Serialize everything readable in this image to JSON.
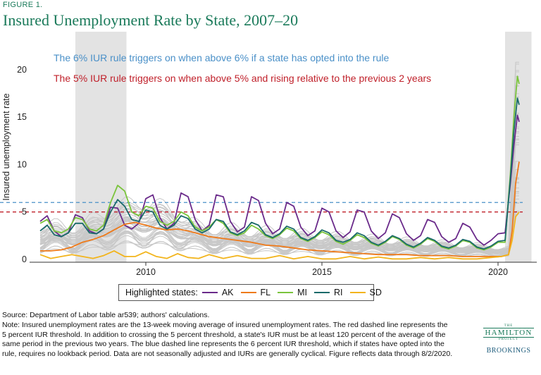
{
  "figure": {
    "label": "FIGURE 1.",
    "title": "Insured Unemployment Rate by State, 2007–20"
  },
  "chart_data": {
    "type": "line",
    "ylabel": "Insured unemployment rate",
    "xlabel": "",
    "xlim": [
      2006.7,
      2021.1
    ],
    "ylim": [
      -0.3,
      24
    ],
    "x_ticks": [
      2010,
      2015,
      2020
    ],
    "y_ticks": [
      0,
      5,
      10,
      15,
      20
    ],
    "grid": false,
    "shaded_periods": [
      [
        2008.0,
        2009.45
      ],
      [
        2020.2,
        2020.95
      ]
    ],
    "thresholds": [
      {
        "value": 6,
        "color": "#4a90c8",
        "style": "dashed",
        "label": "The 6% IUR rule triggers on when above 6% if a state has opted into the rule"
      },
      {
        "value": 5,
        "color": "#c0202a",
        "style": "dashed",
        "label": "The 5% IUR rule triggers on when above 5% and rising relative to the previous 2 years"
      }
    ],
    "background_series_note_color": "#c8c8c8",
    "series": [
      {
        "name": "AK",
        "color": "#6a2a8a",
        "x": [
          2007.0,
          2007.2,
          2007.4,
          2007.6,
          2007.8,
          2008.0,
          2008.2,
          2008.4,
          2008.6,
          2008.8,
          2009.0,
          2009.2,
          2009.4,
          2009.6,
          2009.8,
          2010.0,
          2010.2,
          2010.4,
          2010.6,
          2010.8,
          2011.0,
          2011.2,
          2011.4,
          2011.6,
          2011.8,
          2012.0,
          2012.2,
          2012.4,
          2012.6,
          2012.8,
          2013.0,
          2013.2,
          2013.4,
          2013.6,
          2013.8,
          2014.0,
          2014.2,
          2014.4,
          2014.6,
          2014.8,
          2015.0,
          2015.2,
          2015.4,
          2015.6,
          2015.8,
          2016.0,
          2016.2,
          2016.4,
          2016.6,
          2016.8,
          2017.0,
          2017.2,
          2017.4,
          2017.6,
          2017.8,
          2018.0,
          2018.2,
          2018.4,
          2018.6,
          2018.8,
          2019.0,
          2019.2,
          2019.4,
          2019.6,
          2019.8,
          2020.0,
          2020.2,
          2020.35,
          2020.45,
          2020.55,
          2020.6
        ],
        "y": [
          4.0,
          4.6,
          3.0,
          2.4,
          2.8,
          4.7,
          4.4,
          3.0,
          2.7,
          3.2,
          5.5,
          5.4,
          3.6,
          3.2,
          3.8,
          6.4,
          6.8,
          4.4,
          3.2,
          3.8,
          7.0,
          6.6,
          4.2,
          3.0,
          3.6,
          6.8,
          6.6,
          4.0,
          2.9,
          3.4,
          6.6,
          6.2,
          3.8,
          2.7,
          3.2,
          6.0,
          5.6,
          3.4,
          2.5,
          3.0,
          5.4,
          5.0,
          3.0,
          2.3,
          2.9,
          5.2,
          5.0,
          3.0,
          2.2,
          2.8,
          4.8,
          4.4,
          2.7,
          2.0,
          2.5,
          4.2,
          3.9,
          2.4,
          1.8,
          2.2,
          3.8,
          3.4,
          2.1,
          1.5,
          2.0,
          2.7,
          2.8,
          8.0,
          12.0,
          15.2,
          14.5
        ]
      },
      {
        "name": "FL",
        "color": "#ee7a1a",
        "x": [
          2007.0,
          2007.3,
          2007.6,
          2007.9,
          2008.2,
          2008.5,
          2008.8,
          2009.1,
          2009.4,
          2009.7,
          2010.0,
          2010.3,
          2010.6,
          2010.9,
          2011.2,
          2011.5,
          2011.8,
          2012.2,
          2012.6,
          2013.0,
          2013.4,
          2013.8,
          2014.2,
          2014.6,
          2015.0,
          2015.4,
          2015.8,
          2016.2,
          2016.6,
          2017.0,
          2017.4,
          2017.8,
          2018.2,
          2018.6,
          2019.0,
          2019.4,
          2019.8,
          2020.1,
          2020.3,
          2020.4,
          2020.5,
          2020.6
        ],
        "y": [
          0.9,
          0.9,
          1.0,
          1.3,
          1.8,
          2.1,
          2.5,
          3.1,
          3.7,
          3.9,
          3.6,
          3.3,
          3.1,
          3.2,
          3.0,
          2.7,
          2.4,
          2.2,
          2.0,
          1.8,
          1.5,
          1.4,
          1.2,
          1.0,
          0.9,
          0.8,
          0.7,
          0.6,
          0.5,
          0.5,
          0.5,
          0.4,
          0.4,
          0.4,
          0.3,
          0.3,
          0.3,
          0.3,
          0.5,
          3.0,
          8.0,
          10.3
        ]
      },
      {
        "name": "MI",
        "color": "#7ac43c",
        "x": [
          2007.0,
          2007.2,
          2007.4,
          2007.6,
          2007.8,
          2008.0,
          2008.2,
          2008.4,
          2008.6,
          2008.8,
          2009.0,
          2009.2,
          2009.4,
          2009.6,
          2009.8,
          2010.0,
          2010.2,
          2010.4,
          2010.6,
          2010.8,
          2011.0,
          2011.2,
          2011.4,
          2011.6,
          2011.8,
          2012.0,
          2012.2,
          2012.4,
          2012.6,
          2012.8,
          2013.0,
          2013.2,
          2013.4,
          2013.6,
          2013.8,
          2014.0,
          2014.2,
          2014.4,
          2014.6,
          2014.8,
          2015.0,
          2015.2,
          2015.4,
          2015.6,
          2015.8,
          2016.0,
          2016.2,
          2016.4,
          2016.6,
          2016.8,
          2017.0,
          2017.2,
          2017.4,
          2017.6,
          2017.8,
          2018.0,
          2018.2,
          2018.4,
          2018.6,
          2018.8,
          2019.0,
          2019.2,
          2019.4,
          2019.6,
          2019.8,
          2020.0,
          2020.2,
          2020.35,
          2020.45,
          2020.55,
          2020.6
        ],
        "y": [
          3.8,
          4.2,
          3.0,
          2.8,
          3.2,
          4.4,
          4.2,
          3.2,
          3.0,
          3.6,
          6.0,
          7.8,
          7.2,
          5.0,
          4.6,
          5.6,
          5.4,
          4.0,
          3.6,
          4.0,
          5.0,
          4.6,
          3.4,
          3.0,
          3.4,
          4.2,
          3.8,
          2.8,
          2.5,
          2.8,
          3.6,
          3.2,
          2.5,
          2.2,
          2.6,
          3.3,
          3.0,
          2.2,
          1.9,
          2.3,
          2.9,
          2.6,
          1.9,
          1.6,
          2.0,
          2.6,
          2.3,
          1.7,
          1.4,
          1.8,
          2.4,
          2.1,
          1.5,
          1.2,
          1.6,
          2.2,
          1.9,
          1.3,
          1.1,
          1.4,
          2.0,
          1.8,
          1.2,
          1.0,
          1.3,
          1.8,
          1.8,
          9.0,
          15.0,
          19.3,
          18.5
        ]
      },
      {
        "name": "RI",
        "color": "#1a6a6a",
        "x": [
          2007.0,
          2007.2,
          2007.4,
          2007.6,
          2007.8,
          2008.0,
          2008.2,
          2008.4,
          2008.6,
          2008.8,
          2009.0,
          2009.2,
          2009.4,
          2009.6,
          2009.8,
          2010.0,
          2010.2,
          2010.4,
          2010.6,
          2010.8,
          2011.0,
          2011.2,
          2011.4,
          2011.6,
          2011.8,
          2012.0,
          2012.2,
          2012.4,
          2012.6,
          2012.8,
          2013.0,
          2013.2,
          2013.4,
          2013.6,
          2013.8,
          2014.0,
          2014.2,
          2014.4,
          2014.6,
          2014.8,
          2015.0,
          2015.2,
          2015.4,
          2015.6,
          2015.8,
          2016.0,
          2016.2,
          2016.4,
          2016.6,
          2016.8,
          2017.0,
          2017.2,
          2017.4,
          2017.6,
          2017.8,
          2018.0,
          2018.2,
          2018.4,
          2018.6,
          2018.8,
          2019.0,
          2019.2,
          2019.4,
          2019.6,
          2019.8,
          2020.0,
          2020.2,
          2020.35,
          2020.45,
          2020.55,
          2020.6
        ],
        "y": [
          3.0,
          3.6,
          2.6,
          2.4,
          2.8,
          3.8,
          3.8,
          2.8,
          2.7,
          3.2,
          5.0,
          6.3,
          5.6,
          4.2,
          4.0,
          5.2,
          5.0,
          3.6,
          3.2,
          3.6,
          4.6,
          4.3,
          3.2,
          2.8,
          3.2,
          4.2,
          4.0,
          2.9,
          2.6,
          3.0,
          3.9,
          3.6,
          2.6,
          2.3,
          2.7,
          3.5,
          3.2,
          2.3,
          2.0,
          2.4,
          3.1,
          2.8,
          2.0,
          1.8,
          2.1,
          2.8,
          2.5,
          1.8,
          1.5,
          1.9,
          2.5,
          2.2,
          1.6,
          1.3,
          1.7,
          2.3,
          2.0,
          1.4,
          1.2,
          1.5,
          2.1,
          1.9,
          1.3,
          1.1,
          1.4,
          1.9,
          2.0,
          8.5,
          13.5,
          17.0,
          16.3
        ]
      },
      {
        "name": "SD",
        "color": "#f2b41c",
        "x": [
          2007.0,
          2007.3,
          2007.6,
          2007.9,
          2008.2,
          2008.5,
          2008.8,
          2009.1,
          2009.4,
          2009.7,
          2010.0,
          2010.3,
          2010.6,
          2010.9,
          2011.2,
          2011.5,
          2011.8,
          2012.2,
          2012.6,
          2013.0,
          2013.4,
          2013.8,
          2014.2,
          2014.6,
          2015.0,
          2015.4,
          2015.8,
          2016.2,
          2016.6,
          2017.0,
          2017.4,
          2017.8,
          2018.2,
          2018.6,
          2019.0,
          2019.4,
          2019.8,
          2020.1,
          2020.3,
          2020.4,
          2020.5,
          2020.6
        ],
        "y": [
          0.5,
          0.1,
          0.3,
          0.5,
          0.3,
          0.1,
          0.4,
          0.9,
          0.3,
          0.3,
          0.8,
          0.3,
          0.1,
          0.6,
          0.2,
          0.1,
          0.5,
          0.1,
          0.4,
          0.1,
          0.1,
          0.4,
          0.05,
          0.3,
          0.05,
          0.05,
          0.3,
          0.05,
          0.25,
          0.05,
          0.05,
          0.2,
          0.05,
          0.2,
          0.05,
          0.05,
          0.2,
          0.3,
          0.5,
          2.0,
          4.5,
          5.0
        ]
      }
    ]
  },
  "legend": {
    "title": "Highlighted states:",
    "items": [
      "AK",
      "FL",
      "MI",
      "RI",
      "SD"
    ]
  },
  "footer": {
    "source": "Source: Department of Labor table ar539; authors' calculations.",
    "note": "Note: Insured unemployment rates are the 13-week moving average of insured unemployment rates. The red dashed line represents the 5 percent IUR threshold. In addition to crossing the 5 percent threshold, a state's IUR must be at least 120 percent of the average of the same period in the previous two years. The blue dashed line represents the 6 percent IUR threshold, which if states have opted into the rule, requires no lookback period. Data are not seasonally adjusted and IURs are generally cyclical. Figure reflects data through 8/2/2020."
  },
  "logo": {
    "the": "THE",
    "name": "HAMILTON",
    "sub": "PROJECT",
    "org": "BROOKINGS"
  }
}
